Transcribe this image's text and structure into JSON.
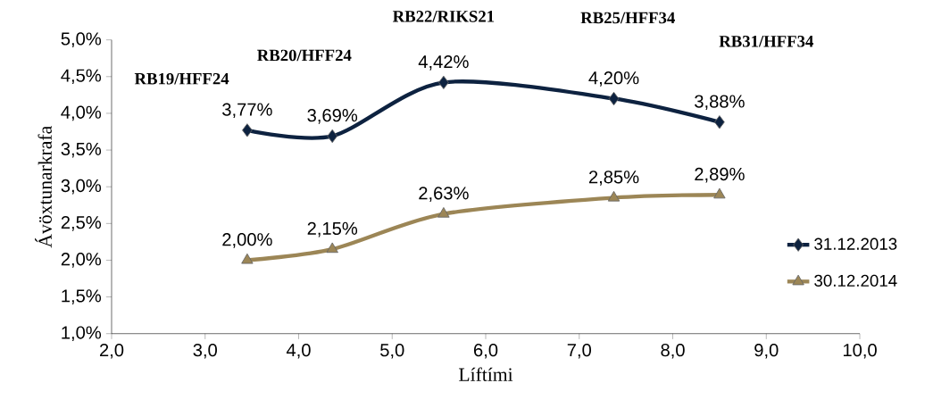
{
  "chart_data": {
    "type": "line",
    "xlabel": "Líftími",
    "ylabel": "Ávöxtunarkrafa",
    "xlim": [
      2.0,
      10.0
    ],
    "ylim": [
      1.0,
      5.0
    ],
    "xticks": [
      {
        "value": 2.0,
        "label": "2,0"
      },
      {
        "value": 3.0,
        "label": "3,0"
      },
      {
        "value": 4.0,
        "label": "4,0"
      },
      {
        "value": 5.0,
        "label": "5,0"
      },
      {
        "value": 6.0,
        "label": "6,0"
      },
      {
        "value": 7.0,
        "label": "7,0"
      },
      {
        "value": 8.0,
        "label": "8,0"
      },
      {
        "value": 9.0,
        "label": "9,0"
      },
      {
        "value": 10.0,
        "label": "10,0"
      }
    ],
    "yticks": [
      {
        "value": 1.0,
        "label": "1,0%"
      },
      {
        "value": 1.5,
        "label": "1,5%"
      },
      {
        "value": 2.0,
        "label": "2,0%"
      },
      {
        "value": 2.5,
        "label": "2,5%"
      },
      {
        "value": 3.0,
        "label": "3,0%"
      },
      {
        "value": 3.5,
        "label": "3,5%"
      },
      {
        "value": 4.0,
        "label": "4,0%"
      },
      {
        "value": 4.5,
        "label": "4,5%"
      },
      {
        "value": 5.0,
        "label": "5,0%"
      }
    ],
    "x": [
      3.45,
      4.36,
      5.55,
      7.37,
      8.5
    ],
    "series": [
      {
        "name": "31.12.2013",
        "color": "#0d2240",
        "marker": "diamond",
        "values": [
          3.77,
          3.69,
          4.42,
          4.2,
          3.88
        ],
        "value_labels": [
          "3,77%",
          "3,69%",
          "4,42%",
          "4,20%",
          "3,88%"
        ]
      },
      {
        "name": "30.12.2014",
        "color": "#9c8656",
        "marker": "triangle",
        "values": [
          2.0,
          2.15,
          2.63,
          2.85,
          2.89
        ],
        "value_labels": [
          "2,00%",
          "2,15%",
          "2,63%",
          "2,85%",
          "2,89%"
        ]
      }
    ],
    "annotations": [
      "RB19/HFF24",
      "RB20/HFF24",
      "RB22/RIKS21",
      "RB25/HFF34",
      "RB31/HFF34"
    ],
    "legend": "right",
    "grid": false,
    "line_style": "solid"
  }
}
